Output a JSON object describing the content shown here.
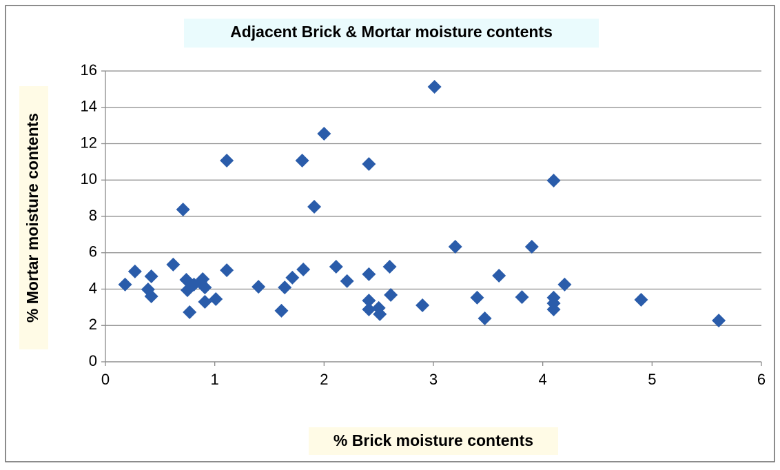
{
  "chart_data": {
    "type": "scatter",
    "title": "Adjacent Brick & Mortar  moisture contents",
    "x_label": "% Brick moisture contents",
    "y_label": "% Mortar moisture contents",
    "series": [
      {
        "color": "#2a5caa",
        "x": [
          0.18,
          0.27,
          0.39,
          0.42,
          0.42,
          0.62,
          0.71,
          0.74,
          0.75,
          0.77,
          0.81,
          0.87,
          0.89,
          0.91,
          0.91,
          1.01,
          1.11,
          1.11,
          1.4,
          1.61,
          1.64,
          1.71,
          1.8,
          1.81,
          1.91,
          2.0,
          2.11,
          2.21,
          2.41,
          2.41,
          2.41,
          2.41,
          2.5,
          2.51,
          2.6,
          2.61,
          2.9,
          3.01,
          3.2,
          3.4,
          3.47,
          3.6,
          3.81,
          3.9,
          4.1,
          4.1,
          4.1,
          4.1,
          4.2,
          4.9,
          5.61
        ],
        "values": [
          4.25,
          4.97,
          3.98,
          4.7,
          3.6,
          5.35,
          8.38,
          4.51,
          3.94,
          2.73,
          4.25,
          4.4,
          4.55,
          4.09,
          3.3,
          3.45,
          11.07,
          5.04,
          4.13,
          2.81,
          4.09,
          4.63,
          11.07,
          5.08,
          8.53,
          12.55,
          5.23,
          4.44,
          10.88,
          4.82,
          3.37,
          2.88,
          2.96,
          2.62,
          5.23,
          3.68,
          3.11,
          15.13,
          6.33,
          3.53,
          2.39,
          4.74,
          3.56,
          6.33,
          9.97,
          3.53,
          3.22,
          2.88,
          4.25,
          3.41,
          2.27
        ]
      }
    ],
    "xlim": [
      0,
      6
    ],
    "xticks": [
      0,
      1,
      2,
      3,
      4,
      5,
      6
    ],
    "ylim": [
      0,
      16
    ],
    "yticks": [
      0,
      2,
      4,
      6,
      8,
      10,
      12,
      14,
      16
    ],
    "grid": true
  }
}
